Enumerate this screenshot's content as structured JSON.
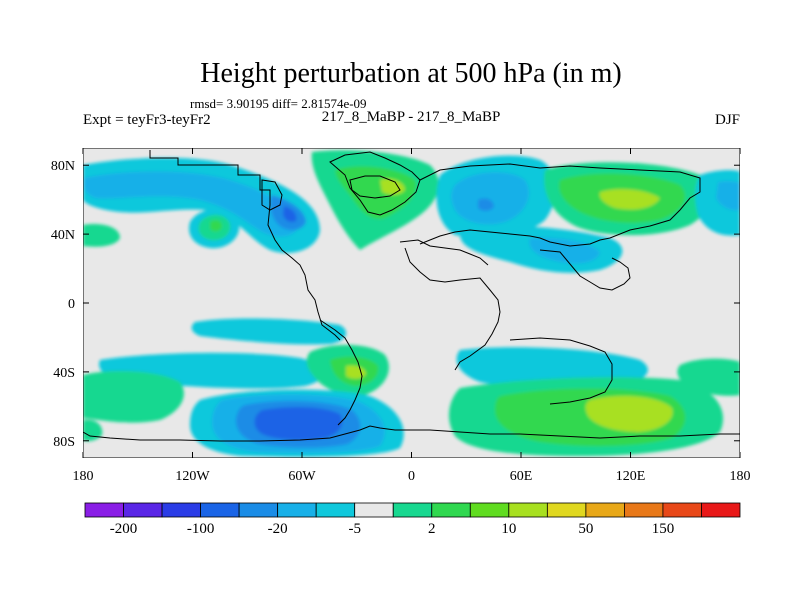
{
  "figure": {
    "title": "Height perturbation at 500 hPa (in m)",
    "stats_line": "rmsd= 3.90195 diff= 2.81574e-09",
    "left_label": "Expt = teyFr3-teyFr2",
    "center_label": "217_8_MaBP - 217_8_MaBP",
    "right_label": "DJF"
  },
  "map": {
    "lon_range": [
      -180,
      180
    ],
    "lat_range": [
      -90,
      90
    ],
    "lon_ticks": [
      "180",
      "120W",
      "60W",
      "0",
      "60E",
      "120E",
      "180"
    ],
    "lat_ticks": [
      "80N",
      "40N",
      "0",
      "40S",
      "80S"
    ]
  },
  "colorbar": {
    "labels": [
      "-200",
      "-100",
      "-20",
      "-5",
      "2",
      "10",
      "50",
      "150"
    ],
    "colors": [
      "#8a1ee6",
      "#5a26e6",
      "#2a3ce6",
      "#1a64e6",
      "#1a8ce6",
      "#18b0e8",
      "#10c8dc",
      "#e8e8e8",
      "#18d890",
      "#30d850",
      "#60dc20",
      "#a8e020",
      "#e0d820",
      "#e8a818",
      "#e87818",
      "#e84818",
      "#e81818"
    ]
  }
}
